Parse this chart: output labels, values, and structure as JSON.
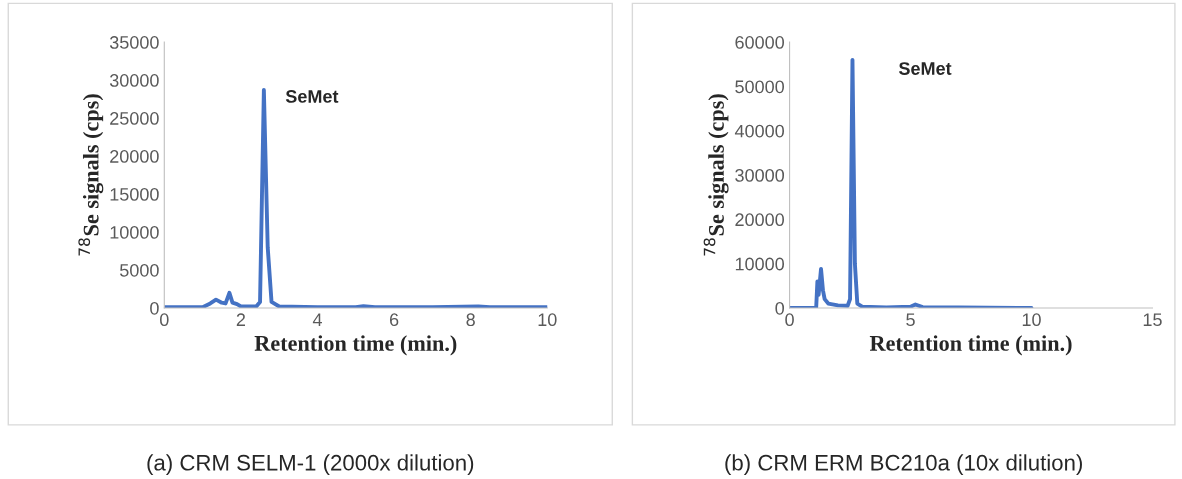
{
  "chart_data": [
    {
      "type": "line",
      "xlabel": "Retention time (min.)",
      "ylabel": "$^{78}$Se signals (cps)",
      "x": [
        0,
        0.5,
        1.0,
        1.2,
        1.35,
        1.5,
        1.6,
        1.7,
        1.78,
        1.9,
        2.0,
        2.4,
        2.5,
        2.6,
        2.7,
        2.8,
        3.0,
        4,
        5,
        5.2,
        5.5,
        7,
        8.2,
        8.5,
        10
      ],
      "series": [
        {
          "color": "#4472c4",
          "values": [
            100,
            100,
            100,
            600,
            1100,
            700,
            600,
            2000,
            700,
            500,
            200,
            200,
            800,
            28700,
            8000,
            800,
            200,
            100,
            100,
            250,
            100,
            100,
            200,
            100,
            100
          ]
        }
      ],
      "xlim": [
        0,
        10
      ],
      "xticks": [
        0,
        2,
        4,
        6,
        8,
        10
      ],
      "ylim": [
        0,
        35000
      ],
      "yticks": [
        0,
        5000,
        10000,
        15000,
        20000,
        25000,
        30000,
        35000
      ],
      "grid": false,
      "legend": false,
      "marker": "none",
      "line_style": "solid",
      "annotations": [
        "SeMet",
        "(a) CRM SELM-1 (2000x dilution)"
      ]
    },
    {
      "type": "line",
      "xlabel": "Retention time (min.)",
      "ylabel": "$^{78}$Se signals (cps)",
      "x": [
        0,
        1.0,
        1.1,
        1.15,
        1.2,
        1.3,
        1.38,
        1.45,
        1.6,
        2.0,
        2.4,
        2.5,
        2.6,
        2.7,
        2.8,
        3.0,
        4.0,
        5.0,
        5.2,
        5.5,
        7,
        10
      ],
      "series": [
        {
          "color": "#4472c4",
          "values": [
            0,
            0,
            100,
            6000,
            3000,
            8800,
            4000,
            2000,
            1000,
            600,
            500,
            2000,
            56000,
            10000,
            1000,
            300,
            100,
            300,
            800,
            200,
            100,
            0
          ]
        }
      ],
      "xlim": [
        0,
        15
      ],
      "xticks": [
        0,
        5,
        10,
        15
      ],
      "ylim": [
        0,
        60000
      ],
      "yticks": [
        0,
        10000,
        20000,
        30000,
        40000,
        50000,
        60000
      ],
      "grid": false,
      "legend": false,
      "marker": "none",
      "line_style": "solid",
      "annotations": [
        "SeMet",
        "(b) CRM ERM BC210a (10x dilution)"
      ]
    }
  ]
}
